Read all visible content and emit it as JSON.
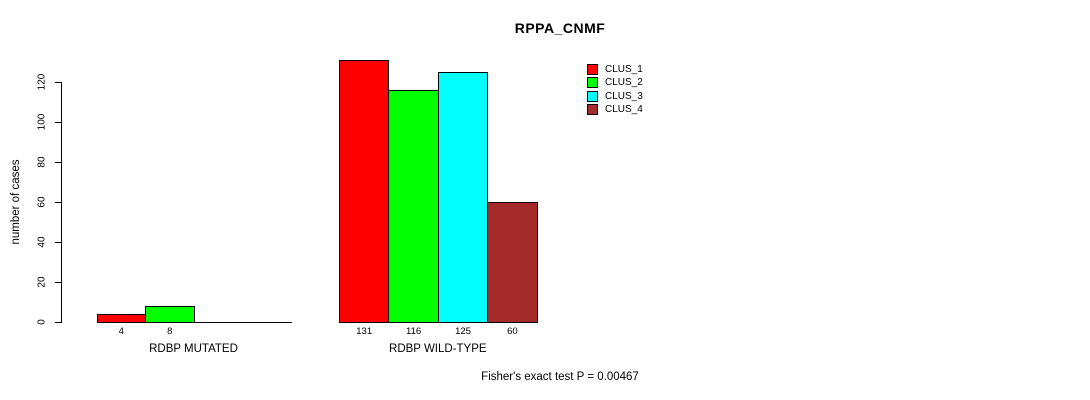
{
  "chart": {
    "title": "RPPA_CNMF",
    "y_axis_label": "number of cases",
    "x_group_labels": [
      "RDBP MUTATED",
      "RDBP WILD-TYPE"
    ],
    "footer_annotation": "Fisher's exact test P = 0.00467",
    "legend_labels": [
      "CLUS_1",
      "CLUS_2",
      "CLUS_3",
      "CLUS_4"
    ]
  },
  "chart_data": {
    "type": "bar",
    "title": "RPPA_CNMF",
    "xlabel": "",
    "ylabel": "number of cases",
    "ylim": [
      0,
      120
    ],
    "yticks": [
      0,
      20,
      40,
      60,
      80,
      100,
      120
    ],
    "grid": false,
    "legend_position": "top-right-inside",
    "categories": [
      "RDBP MUTATED",
      "RDBP WILD-TYPE"
    ],
    "series": [
      {
        "name": "CLUS_1",
        "color": "#ff0000",
        "values": [
          4,
          131
        ]
      },
      {
        "name": "CLUS_2",
        "color": "#00ff00",
        "values": [
          8,
          116
        ]
      },
      {
        "name": "CLUS_3",
        "color": "#00ffff",
        "values": [
          0,
          125
        ]
      },
      {
        "name": "CLUS_4",
        "color": "#a52a2a",
        "values": [
          0,
          60
        ]
      }
    ],
    "bar_value_labels_shown_when": "value > 0",
    "annotation": "Fisher's exact test P = 0.00467",
    "colors": {
      "bar_border": "#000000",
      "axis": "#000000",
      "text": "#000000",
      "background": "#ffffff"
    }
  }
}
